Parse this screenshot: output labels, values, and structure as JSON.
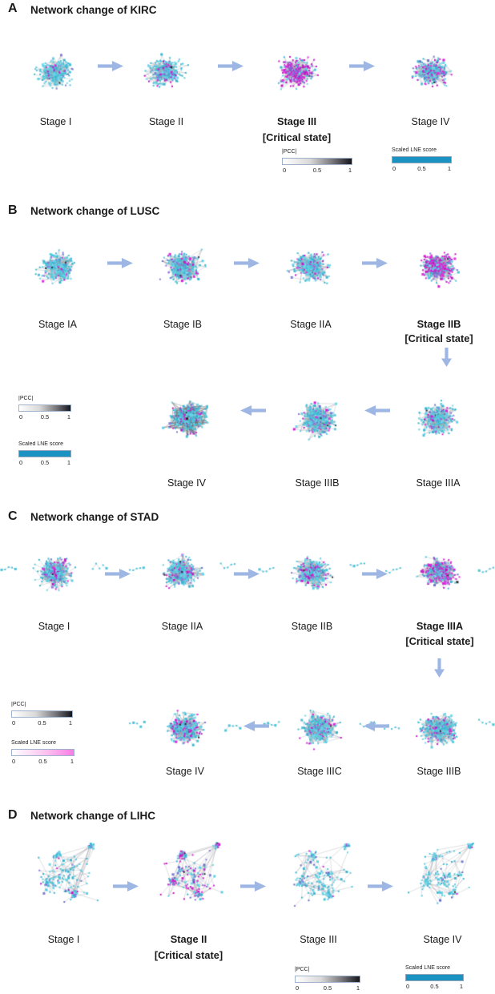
{
  "panels": [
    {
      "letter": "A",
      "title": "Network change of KIRC",
      "rows": [
        {
          "stages": [
            {
              "label": "Stage I",
              "network": {
                "seed": 11,
                "n": 235,
                "m": 0.05,
                "p": 0.09,
                "ed": 0.95,
                "thr": 0.28
              }
            },
            {
              "label": "Stage II",
              "network": {
                "seed": 12,
                "n": 255,
                "m": 0.14,
                "p": 0.11,
                "ed": 1.0,
                "thr": 0.28
              }
            },
            {
              "label": "Stage III",
              "critical_label": "[Critical state]",
              "network": {
                "seed": 13,
                "n": 265,
                "m": 0.6,
                "p": 0.13,
                "ed": 1.0,
                "thr": 0.28
              }
            },
            {
              "label": "Stage IV",
              "network": {
                "seed": 14,
                "n": 255,
                "m": 0.22,
                "p": 0.13,
                "ed": 1.0,
                "thr": 0.28
              }
            }
          ]
        }
      ],
      "legends": [
        {
          "label": "|PCC|",
          "ticks": [
            "0",
            "0.5",
            "1"
          ]
        },
        {
          "label": "Scaled LNE score",
          "ticks": [
            "0",
            "0.5",
            "1"
          ]
        }
      ]
    },
    {
      "letter": "B",
      "title": "Network change of LUSC",
      "rows": [
        {
          "stages": [
            {
              "label": "Stage IA",
              "network": {
                "seed": 21,
                "n": 275,
                "m": 0.05,
                "p": 0.08,
                "ed": 1.0,
                "thr": 0.26
              }
            },
            {
              "label": "Stage IB",
              "network": {
                "seed": 22,
                "n": 285,
                "m": 0.11,
                "p": 0.1,
                "ed": 1.15,
                "thr": 0.26
              }
            },
            {
              "label": "Stage IIA",
              "network": {
                "seed": 23,
                "n": 285,
                "m": 0.12,
                "p": 0.1,
                "ed": 1.15,
                "thr": 0.26
              }
            },
            {
              "label": "Stage IIB",
              "critical_label": "[Critical state]",
              "network": {
                "seed": 24,
                "n": 295,
                "m": 0.5,
                "p": 0.16,
                "ed": 1.2,
                "thr": 0.26
              }
            }
          ]
        },
        {
          "stages": [
            {
              "label": "Stage IV",
              "network": {
                "seed": 25,
                "n": 310,
                "m": 0.11,
                "p": 0.09,
                "ed": 2.0,
                "thr": 0.3,
                "dark": true
              }
            },
            {
              "label": "Stage IIIB",
              "network": {
                "seed": 26,
                "n": 295,
                "m": 0.12,
                "p": 0.09,
                "ed": 1.45,
                "thr": 0.27
              }
            },
            {
              "label": "Stage IIIA",
              "network": {
                "seed": 27,
                "n": 265,
                "m": 0.1,
                "p": 0.09,
                "ed": 1.1,
                "thr": 0.27
              }
            }
          ]
        }
      ],
      "legends": [
        {
          "label": "|PCC|",
          "ticks": [
            "0",
            "0.5",
            "1"
          ]
        },
        {
          "label": "Scaled LNE score",
          "ticks": [
            "0",
            "0.5",
            "1"
          ]
        }
      ]
    },
    {
      "letter": "C",
      "title": "Network change of STAD",
      "rows": [
        {
          "stages": [
            {
              "label": "Stage I",
              "network": {
                "seed": 31,
                "n": 300,
                "m": 0.15,
                "p": 0.1,
                "ed": 1.6,
                "thr": 0.22,
                "tails": true
              }
            },
            {
              "label": "Stage IIA",
              "network": {
                "seed": 32,
                "n": 300,
                "m": 0.15,
                "p": 0.1,
                "ed": 1.6,
                "thr": 0.22,
                "tails": true
              }
            },
            {
              "label": "Stage IIB",
              "network": {
                "seed": 33,
                "n": 300,
                "m": 0.2,
                "p": 0.11,
                "ed": 1.6,
                "thr": 0.22,
                "tails": true
              }
            },
            {
              "label": "Stage IIIA",
              "critical_label": "[Critical state]",
              "network": {
                "seed": 34,
                "n": 300,
                "m": 0.5,
                "p": 0.12,
                "ed": 1.6,
                "thr": 0.22,
                "tails": true
              }
            }
          ]
        },
        {
          "stages": [
            {
              "label": "Stage IV",
              "network": {
                "seed": 37,
                "n": 290,
                "m": 0.15,
                "p": 0.1,
                "ed": 1.5,
                "thr": 0.23,
                "tails": true
              }
            },
            {
              "label": "Stage IIIC",
              "network": {
                "seed": 36,
                "n": 300,
                "m": 0.12,
                "p": 0.1,
                "ed": 1.6,
                "thr": 0.22,
                "tails": true
              }
            },
            {
              "label": "Stage IIIB",
              "network": {
                "seed": 35,
                "n": 300,
                "m": 0.12,
                "p": 0.1,
                "ed": 1.6,
                "thr": 0.22,
                "tails": true
              }
            }
          ]
        }
      ],
      "legends": [
        {
          "label": "|PCC|",
          "ticks": [
            "0",
            "0.5",
            "1"
          ]
        },
        {
          "label": "Scaled LNE score",
          "ticks": [
            "0",
            "0.5",
            "1"
          ]
        }
      ]
    },
    {
      "letter": "D",
      "title": "Network change of LIHC",
      "rows": [
        {
          "stages": [
            {
              "label": "Stage I",
              "network": {
                "seed": 41,
                "n": 175,
                "m": 0.04,
                "p": 0.12,
                "style": "clusters"
              }
            },
            {
              "label": "Stage II",
              "critical_label": "[Critical state]",
              "network": {
                "seed": 42,
                "n": 190,
                "m": 0.36,
                "p": 0.24,
                "style": "clusters"
              }
            },
            {
              "label": "Stage III",
              "network": {
                "seed": 43,
                "n": 175,
                "m": 0.06,
                "p": 0.12,
                "style": "clusters"
              }
            },
            {
              "label": "Stage IV",
              "network": {
                "seed": 44,
                "n": 170,
                "m": 0.05,
                "p": 0.1,
                "style": "clusters"
              }
            }
          ]
        }
      ],
      "legends": [
        {
          "label": "|PCC|",
          "ticks": [
            "0",
            "0.5",
            "1"
          ]
        },
        {
          "label": "Scaled LNE score",
          "ticks": [
            "0",
            "0.5",
            "1"
          ]
        }
      ]
    }
  ],
  "colors": {
    "node_cyan_shades": [
      "#49c3da",
      "#5fcfe2",
      "#3ab6d0",
      "#73d6e8"
    ],
    "node_purple_shades": [
      "#7b7fd4",
      "#8a7add",
      "#6a6fc8"
    ],
    "node_magenta_shades": [
      "#d31fd3",
      "#c517c5",
      "#e02ddb"
    ],
    "edge": "#a5a5aa",
    "arrow": "#9db6e4",
    "lne_teal": "#1b93c2",
    "lne_pink_end": "#f97ce6",
    "pcc_gradient_end": "#15151d"
  }
}
